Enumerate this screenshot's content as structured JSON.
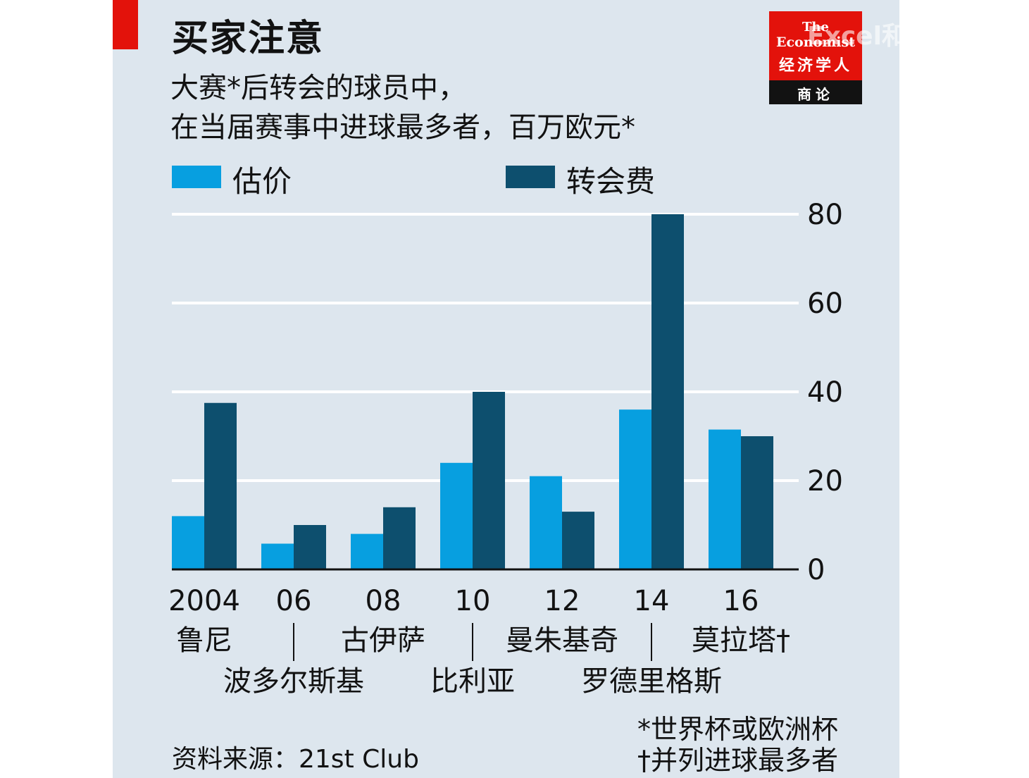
{
  "chart_data": {
    "type": "bar",
    "title": "买家注意",
    "subtitle_lines": [
      "大赛*后转会的球员中，",
      "在当届赛事中进球最多者，百万欧元*"
    ],
    "categories": [
      "2004",
      "06",
      "08",
      "10",
      "12",
      "14",
      "16"
    ],
    "players": [
      "鲁尼",
      "波多尔斯基",
      "古伊萨",
      "比利亚",
      "曼朱基奇",
      "罗德里格斯",
      "莫拉塔†"
    ],
    "series": [
      {
        "name": "估价",
        "color": "#079fe0",
        "values": [
          12,
          5.8,
          8,
          24,
          21,
          36,
          31.5
        ]
      },
      {
        "name": "转会费",
        "color": "#0d4f6e",
        "values": [
          37.5,
          10,
          14,
          40,
          13,
          80,
          30
        ]
      }
    ],
    "ylim": [
      0,
      80
    ],
    "yticks": [
      0,
      20,
      40,
      60,
      80
    ],
    "y_axis_side": "right",
    "grid": true,
    "legend_position": "top-left"
  },
  "logo": {
    "line1": "The",
    "line2": "Economist",
    "line3": "经济学人",
    "bar": "商论"
  },
  "watermark": "Excel和PowerBI",
  "source": "资料来源：21st Club",
  "footnotes": [
    "*世界杯或欧洲杯",
    "†并列进球最多者"
  ]
}
